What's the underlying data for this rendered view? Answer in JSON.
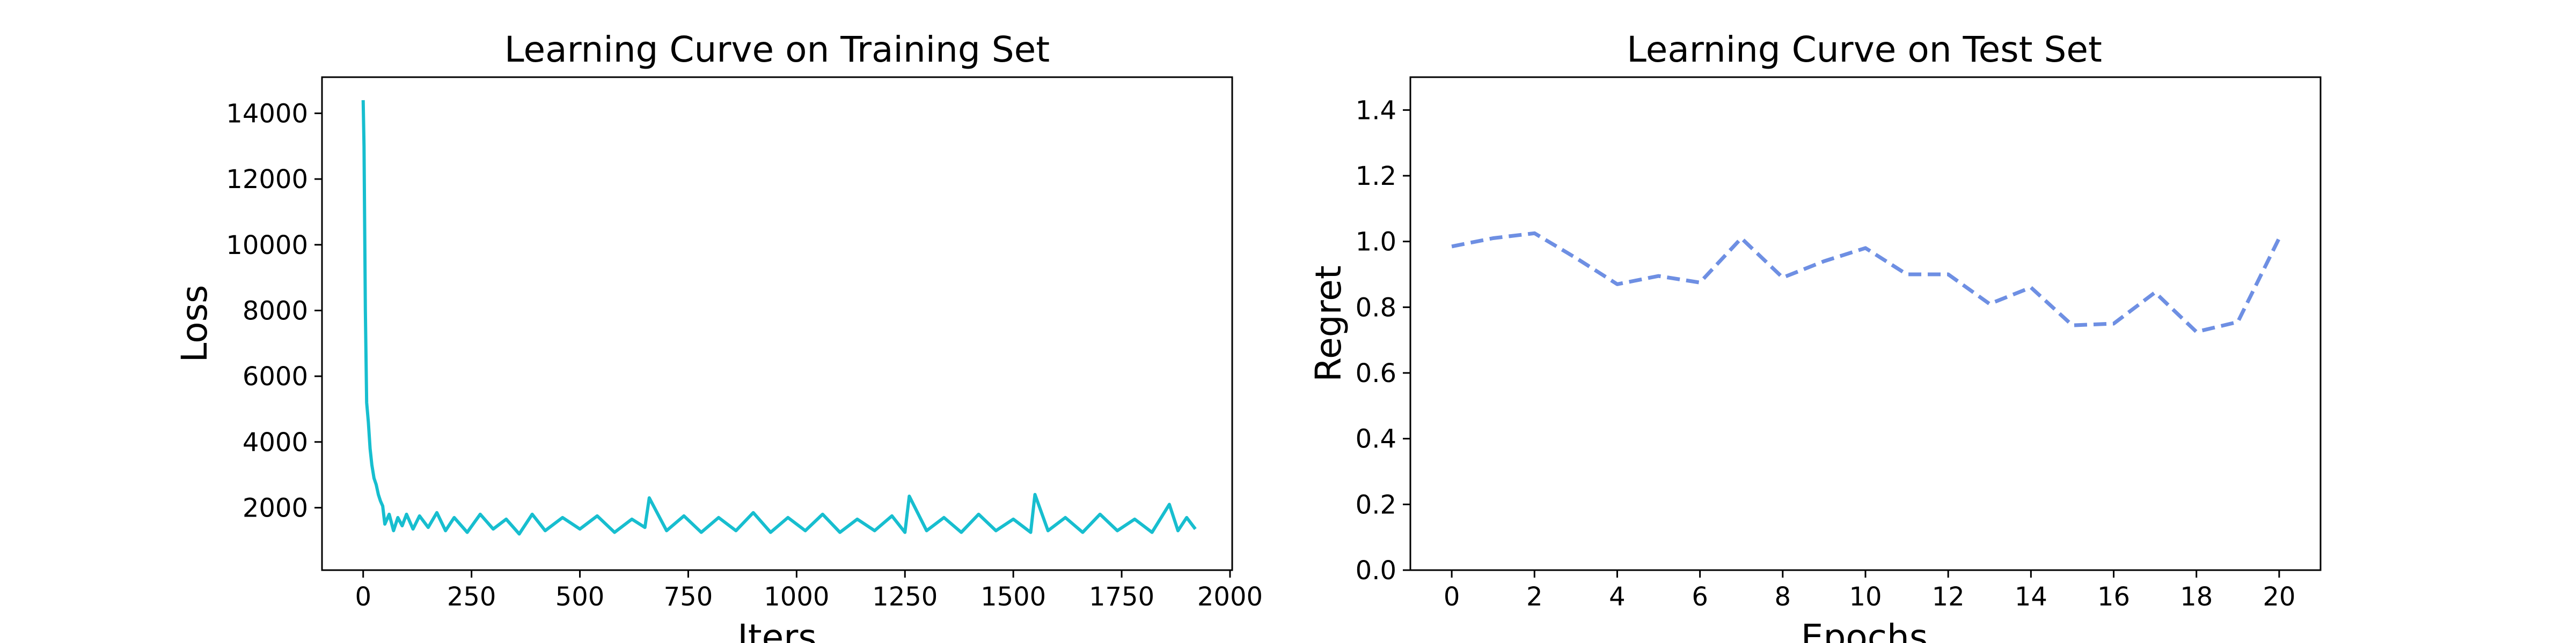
{
  "figure": {
    "background": "#ffffff"
  },
  "chart_data": [
    {
      "type": "line",
      "title": "Learning Curve on Training Set",
      "xlabel": "Iters",
      "ylabel": "Loss",
      "xlim": [
        -95,
        2005
      ],
      "ylim": [
        100,
        15100
      ],
      "xticks": [
        0,
        250,
        500,
        750,
        1000,
        1250,
        1500,
        1750,
        2000
      ],
      "yticks": [
        2000,
        4000,
        6000,
        8000,
        10000,
        12000,
        14000
      ],
      "grid": false,
      "series": [
        {
          "color": "#17becf",
          "line_style": "solid",
          "description_of_values": "loss per iteration (noisy); values sampled",
          "x": [
            0,
            2,
            5,
            8,
            12,
            16,
            20,
            25,
            30,
            35,
            40,
            45,
            50,
            60,
            70,
            80,
            90,
            100,
            115,
            130,
            150,
            170,
            190,
            210,
            240,
            270,
            300,
            330,
            360,
            390,
            420,
            460,
            500,
            540,
            580,
            620,
            650,
            660,
            700,
            740,
            780,
            820,
            860,
            900,
            940,
            980,
            1020,
            1060,
            1100,
            1140,
            1180,
            1220,
            1250,
            1260,
            1300,
            1340,
            1380,
            1420,
            1460,
            1500,
            1540,
            1550,
            1580,
            1620,
            1660,
            1700,
            1740,
            1780,
            1820,
            1860,
            1880,
            1900,
            1920
          ],
          "y": [
            14400,
            13000,
            8000,
            5200,
            4600,
            3800,
            3300,
            2900,
            2700,
            2400,
            2200,
            2050,
            1500,
            1800,
            1300,
            1700,
            1450,
            1800,
            1350,
            1750,
            1400,
            1850,
            1300,
            1700,
            1250,
            1800,
            1350,
            1650,
            1200,
            1800,
            1300,
            1700,
            1350,
            1750,
            1250,
            1650,
            1400,
            2300,
            1300,
            1750,
            1250,
            1700,
            1300,
            1850,
            1250,
            1700,
            1300,
            1800,
            1250,
            1650,
            1300,
            1750,
            1250,
            2350,
            1300,
            1700,
            1250,
            1800,
            1300,
            1650,
            1250,
            2400,
            1300,
            1700,
            1250,
            1800,
            1300,
            1650,
            1250,
            2100,
            1300,
            1700,
            1350
          ]
        }
      ]
    },
    {
      "type": "line",
      "title": "Learning Curve on Test Set",
      "xlabel": "Epochs",
      "ylabel": "Regret",
      "xlim": [
        -1,
        21
      ],
      "ylim": [
        0.0,
        1.5
      ],
      "xticks": [
        0,
        2,
        4,
        6,
        8,
        10,
        12,
        14,
        16,
        18,
        20
      ],
      "yticks": [
        0.0,
        0.2,
        0.4,
        0.6,
        0.8,
        1.0,
        1.2,
        1.4
      ],
      "ytick_format": "1dp",
      "grid": false,
      "series": [
        {
          "color": "#6e8fe3",
          "line_style": "dashed",
          "x": [
            0,
            1,
            2,
            3,
            4,
            5,
            6,
            7,
            8,
            9,
            10,
            11,
            12,
            13,
            14,
            15,
            16,
            17,
            18,
            19,
            20
          ],
          "y": [
            0.985,
            1.01,
            1.025,
            0.95,
            0.87,
            0.895,
            0.875,
            1.01,
            0.89,
            0.94,
            0.98,
            0.9,
            0.9,
            0.81,
            0.86,
            0.745,
            0.75,
            0.845,
            0.725,
            0.755,
            1.01
          ]
        }
      ]
    }
  ]
}
